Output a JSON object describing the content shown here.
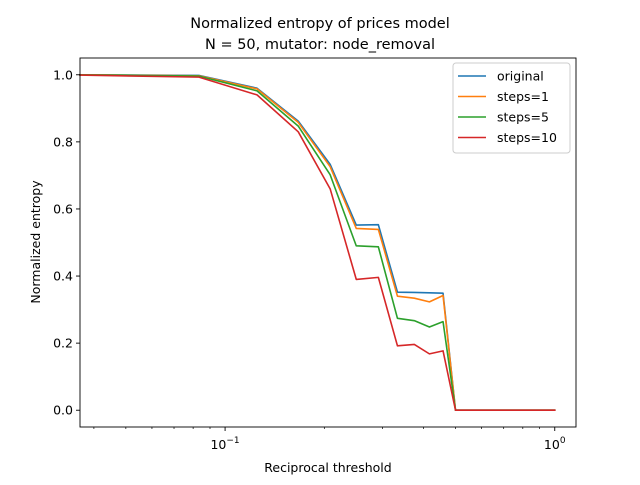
{
  "chart_data": {
    "type": "line",
    "title": "Normalized entropy of prices model",
    "subtitle": "N = 50, mutator: node_removal",
    "xlabel": "Reciprocal threshold",
    "ylabel": "Normalized entropy",
    "xscale": "log",
    "xlim": [
      0.0363,
      1.16
    ],
    "ylim": [
      -0.05,
      1.05
    ],
    "x_ticks": [
      {
        "value": 0.1,
        "base": "10",
        "exp": "−1"
      },
      {
        "value": 1.0,
        "base": "10",
        "exp": "0"
      }
    ],
    "y_ticks": [
      {
        "value": 0.0,
        "label": "0.0"
      },
      {
        "value": 0.2,
        "label": "0.2"
      },
      {
        "value": 0.4,
        "label": "0.4"
      },
      {
        "value": 0.6,
        "label": "0.6"
      },
      {
        "value": 0.8,
        "label": "0.8"
      },
      {
        "value": 1.0,
        "label": "1.0"
      }
    ],
    "grid": false,
    "legend_position": "upper right",
    "x": [
      0.0363,
      0.0833,
      0.125,
      0.1667,
      0.2083,
      0.25,
      0.2917,
      0.3333,
      0.375,
      0.4167,
      0.4583,
      0.5,
      1.0
    ],
    "series": [
      {
        "name": "original",
        "color": "#1f77b4",
        "values": [
          1.0,
          0.998,
          0.96,
          0.862,
          0.733,
          0.552,
          0.553,
          0.352,
          0.351,
          0.35,
          0.349,
          0.0,
          0.0
        ]
      },
      {
        "name": "steps=1",
        "color": "#ff7f0e",
        "values": [
          1.0,
          0.997,
          0.958,
          0.858,
          0.726,
          0.542,
          0.539,
          0.34,
          0.334,
          0.323,
          0.342,
          0.0,
          0.0
        ]
      },
      {
        "name": "steps=5",
        "color": "#2ca02c",
        "values": [
          1.0,
          0.996,
          0.952,
          0.847,
          0.702,
          0.49,
          0.487,
          0.274,
          0.267,
          0.248,
          0.264,
          0.0,
          0.0
        ]
      },
      {
        "name": "steps=10",
        "color": "#d62728",
        "values": [
          0.999,
          0.993,
          0.94,
          0.83,
          0.66,
          0.39,
          0.396,
          0.192,
          0.196,
          0.168,
          0.177,
          0.0,
          0.0
        ]
      }
    ]
  }
}
